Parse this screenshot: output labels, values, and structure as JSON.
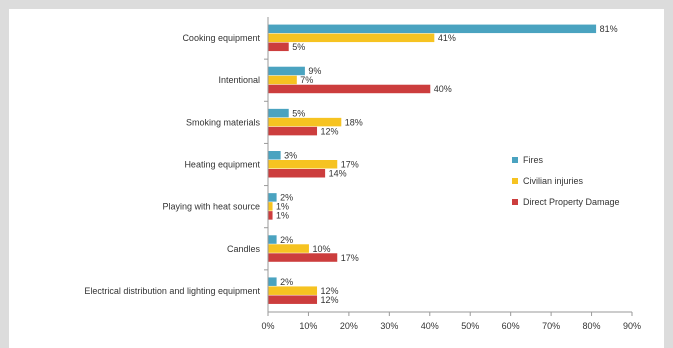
{
  "colors": {
    "fires": "#4aa3c0",
    "civilian_injuries": "#f6c321",
    "direct_property_damage": "#cc3d3d",
    "axis": "#9a9a9a",
    "text": "#333333"
  },
  "chart_data": {
    "type": "bar",
    "orientation": "horizontal",
    "title": "",
    "xlabel": "",
    "ylabel": "",
    "xlim": [
      0,
      90
    ],
    "x_ticks": [
      "0%",
      "10%",
      "20%",
      "30%",
      "40%",
      "50%",
      "60%",
      "70%",
      "80%",
      "90%"
    ],
    "grid": false,
    "legend_position": "right",
    "categories": [
      "Cooking equipment",
      "Intentional",
      "Smoking materials",
      "Heating equipment",
      "Playing with heat source",
      "Candles",
      "Electrical distribution and lighting equipment"
    ],
    "series": [
      {
        "name": "Fires",
        "color_key": "fires",
        "values": [
          81,
          9,
          5,
          3,
          2,
          2,
          2
        ],
        "labels": [
          "81%",
          "9%",
          "5%",
          "3%",
          "2%",
          "2%",
          "2%"
        ]
      },
      {
        "name": "Civilian injuries",
        "color_key": "civilian_injuries",
        "values": [
          41,
          7,
          18,
          17,
          1,
          10,
          12
        ],
        "labels": [
          "41%",
          "7%",
          "18%",
          "17%",
          "1%",
          "10%",
          "12%"
        ]
      },
      {
        "name": "Direct Property Damage",
        "color_key": "direct_property_damage",
        "values": [
          5,
          40,
          12,
          14,
          1,
          17,
          12
        ],
        "labels": [
          "5%",
          "40%",
          "12%",
          "14%",
          "1%",
          "17%",
          "12%"
        ]
      }
    ]
  }
}
